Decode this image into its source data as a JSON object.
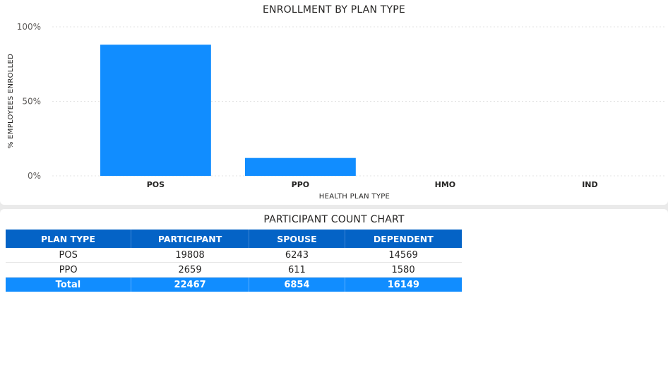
{
  "chart_data": {
    "type": "bar",
    "title": "ENROLLMENT BY PLAN TYPE",
    "xlabel": "HEALTH PLAN TYPE",
    "ylabel": "% EMPLOYEES ENROLLED",
    "categories": [
      "POS",
      "PPO",
      "HMO",
      "IND"
    ],
    "values": [
      88,
      12,
      0,
      0
    ],
    "ylim": [
      0,
      100
    ],
    "yticks": [
      0,
      50,
      100
    ],
    "ytick_labels": [
      "0%",
      "50%",
      "100%"
    ],
    "grid": true,
    "legend": "none",
    "bar_color": "#118dff"
  },
  "table": {
    "title": "PARTICIPANT COUNT CHART",
    "columns": [
      "PLAN TYPE",
      "PARTICIPANT",
      "SPOUSE",
      "DEPENDENT"
    ],
    "rows": [
      [
        "POS",
        "19808",
        "6243",
        "14569"
      ],
      [
        "PPO",
        "2659",
        "611",
        "1580"
      ]
    ],
    "total": [
      "Total",
      "22467",
      "6854",
      "16149"
    ],
    "header_color": "#0463c6",
    "total_color": "#118dff"
  }
}
